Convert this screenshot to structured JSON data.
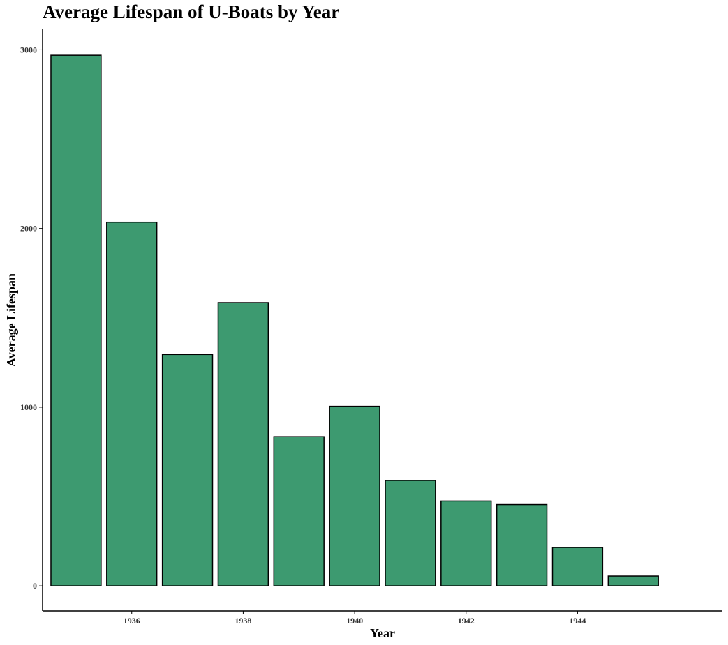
{
  "chart_data": {
    "type": "bar",
    "title": "Average Lifespan of U-Boats by Year",
    "xlabel": "Year",
    "ylabel": "Average Lifespan",
    "categories": [
      1935,
      1936,
      1937,
      1938,
      1939,
      1940,
      1941,
      1942,
      1943,
      1944,
      1945
    ],
    "values": [
      2970,
      2035,
      1295,
      1585,
      835,
      1005,
      590,
      475,
      455,
      215,
      55
    ],
    "xticks": [
      "1936",
      "1938",
      "1940",
      "1942",
      "1944"
    ],
    "yticks": [
      "0",
      "1000",
      "2000",
      "3000"
    ],
    "xlim": [
      1934.4,
      1946.6
    ],
    "ylim": [
      -140,
      3115
    ],
    "bar_fill": "#3d9a70",
    "bar_stroke": "#000000",
    "axis_color": "#000000",
    "grid": false,
    "legend": "none"
  }
}
